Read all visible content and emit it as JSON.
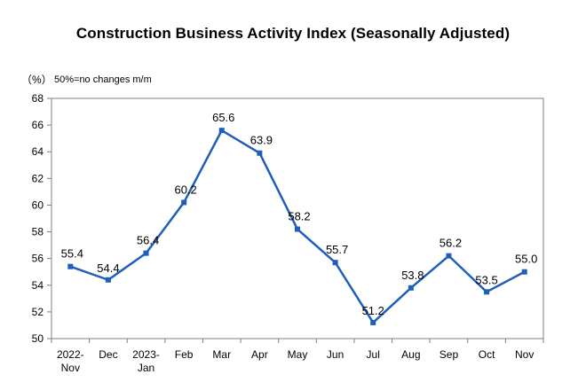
{
  "chart_data": {
    "type": "line",
    "title": "Construction Business Activity Index (Seasonally Adjusted)",
    "ylabel": "（%）",
    "note": "50%=no changes m/m",
    "categories": [
      [
        "2022-",
        "Nov"
      ],
      [
        "Dec"
      ],
      [
        "2023-",
        "Jan"
      ],
      [
        "Feb"
      ],
      [
        "Mar"
      ],
      [
        "Apr"
      ],
      [
        "May"
      ],
      [
        "Jun"
      ],
      [
        "Jul"
      ],
      [
        "Aug"
      ],
      [
        "Sep"
      ],
      [
        "Oct"
      ],
      [
        "Nov"
      ]
    ],
    "values": [
      55.4,
      54.4,
      56.4,
      60.2,
      65.6,
      63.9,
      58.2,
      55.7,
      51.2,
      53.8,
      56.2,
      53.5,
      55.0
    ],
    "data_labels": [
      "55.4",
      "54.4",
      "56.4",
      "60.2",
      "65.6",
      "63.9",
      "58.2",
      "55.7",
      "51.2",
      "53.8",
      "56.2",
      "53.5",
      "55.0"
    ],
    "ylim": [
      50,
      68
    ],
    "yticks": [
      50,
      52,
      54,
      56,
      58,
      60,
      62,
      64,
      66,
      68
    ],
    "grid": false,
    "legend": "none",
    "colors": {
      "line": "#1f5fb7",
      "axis": "#7f7f7f"
    }
  }
}
